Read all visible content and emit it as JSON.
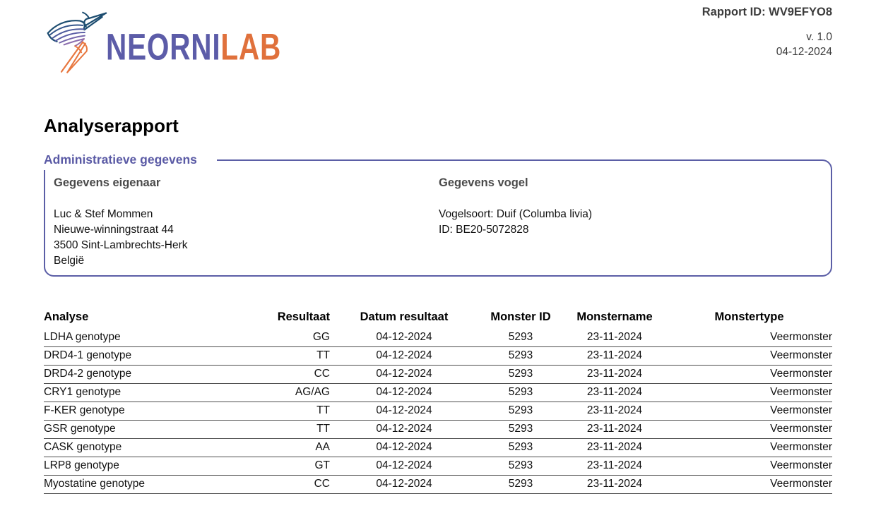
{
  "header": {
    "rapport_id": "Rapport ID: WV9EFYO8",
    "version": "v. 1.0",
    "date": "04-12-2024",
    "logo_primary": "NEORNI",
    "logo_secondary": "LAB"
  },
  "colors": {
    "brand_purple": "#5b5ea6",
    "brand_orange": "#e0713c",
    "brand_navy": "#1d4d70"
  },
  "title": "Analyserapport",
  "admin_section": {
    "heading": "Administratieve gegevens",
    "owner": {
      "heading": "Gegevens eigenaar",
      "lines": [
        "Luc & Stef Mommen",
        "Nieuwe-winningstraat 44",
        "3500 Sint-Lambrechts-Herk",
        "België"
      ]
    },
    "bird": {
      "heading": "Gegevens vogel",
      "lines": [
        "Vogelsoort: Duif (Columba livia)",
        "ID: BE20-5072828"
      ]
    }
  },
  "results_table": {
    "columns": [
      "Analyse",
      "Resultaat",
      "Datum resultaat",
      "Monster ID",
      "Monstername",
      "Monstertype"
    ],
    "rows": [
      [
        "LDHA genotype",
        "GG",
        "04-12-2024",
        "5293",
        "23-11-2024",
        "Veermonster"
      ],
      [
        "DRD4-1 genotype",
        "TT",
        "04-12-2024",
        "5293",
        "23-11-2024",
        "Veermonster"
      ],
      [
        "DRD4-2 genotype",
        "CC",
        "04-12-2024",
        "5293",
        "23-11-2024",
        "Veermonster"
      ],
      [
        "CRY1 genotype",
        "AG/AG",
        "04-12-2024",
        "5293",
        "23-11-2024",
        "Veermonster"
      ],
      [
        "F-KER genotype",
        "TT",
        "04-12-2024",
        "5293",
        "23-11-2024",
        "Veermonster"
      ],
      [
        "GSR genotype",
        "TT",
        "04-12-2024",
        "5293",
        "23-11-2024",
        "Veermonster"
      ],
      [
        "CASK genotype",
        "AA",
        "04-12-2024",
        "5293",
        "23-11-2024",
        "Veermonster"
      ],
      [
        "LRP8 genotype",
        "GT",
        "04-12-2024",
        "5293",
        "23-11-2024",
        "Veermonster"
      ],
      [
        "Myostatine genotype",
        "CC",
        "04-12-2024",
        "5293",
        "23-11-2024",
        "Veermonster"
      ]
    ]
  }
}
